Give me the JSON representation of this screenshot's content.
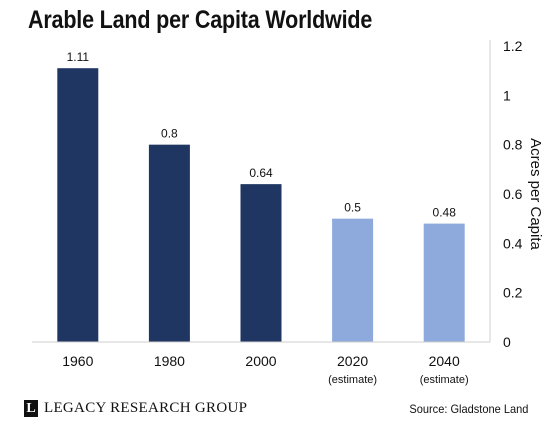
{
  "header": {
    "title": "Arable Land per Capita Worldwide"
  },
  "footer": {
    "brand": "LEGACY RESEARCH GROUP",
    "brand_logo_letter": "L",
    "source": "Source: Gladstone Land"
  },
  "colors": {
    "actual": "#1f3662",
    "estimate": "#8eaadd"
  },
  "chart_data": {
    "type": "bar",
    "categories": [
      "1960",
      "1980",
      "2000",
      "2020",
      "2040"
    ],
    "category_notes": [
      "",
      "",
      "",
      "(estimate)",
      "(estimate)"
    ],
    "values": [
      1.11,
      0.8,
      0.64,
      0.5,
      0.48
    ],
    "value_labels": [
      "1.11",
      "0.8",
      "0.64",
      "0.5",
      "0.48"
    ],
    "estimate": [
      false,
      false,
      false,
      true,
      true
    ],
    "ylabel": "Acres per Capita",
    "ylim": [
      0,
      1.2
    ],
    "yticks": [
      "0",
      "0.2",
      "0.4",
      "0.6",
      "0.8",
      "1",
      "1.2"
    ],
    "y_axis_side": "right",
    "grid": false
  }
}
